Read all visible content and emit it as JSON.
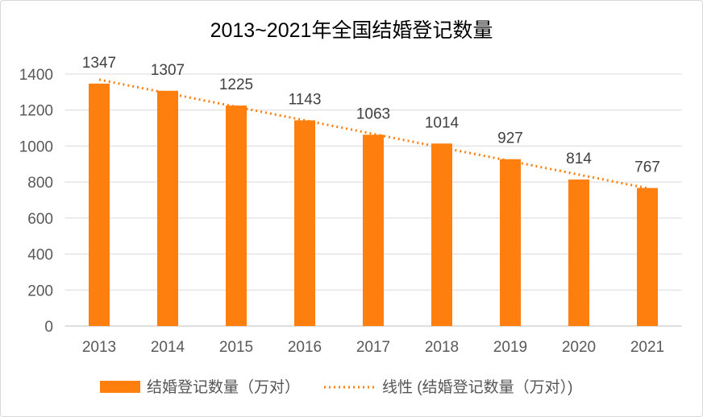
{
  "chart_data": {
    "type": "bar",
    "title": "2013~2021年全国结婚登记数量",
    "categories": [
      "2013",
      "2014",
      "2015",
      "2016",
      "2017",
      "2018",
      "2019",
      "2020",
      "2021"
    ],
    "series": [
      {
        "name": "结婚登记数量（万对）",
        "values": [
          1347,
          1307,
          1225,
          1143,
          1063,
          1014,
          927,
          814,
          767
        ],
        "color": "#ff7f0e"
      }
    ],
    "trendline": {
      "name": "线性 (结婚登记数量（万对）)",
      "type": "linear",
      "style": "dotted",
      "color": "#ff7f0e"
    },
    "ylim": [
      0,
      1400
    ],
    "yticks": [
      0,
      200,
      400,
      600,
      800,
      1000,
      1200,
      1400
    ],
    "xlabel": "",
    "ylabel": "",
    "grid": true,
    "data_labels": true,
    "legend": "bottom"
  }
}
